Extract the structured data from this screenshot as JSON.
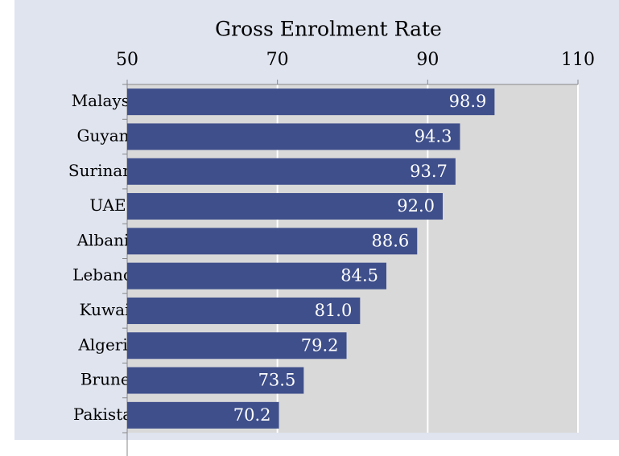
{
  "chart_data": {
    "type": "bar",
    "orientation": "horizontal",
    "title": "Gross Enrolment Rate",
    "categories": [
      "Malaysia",
      "Guyana",
      "Suriname",
      "UAE",
      "Albania",
      "Lebanon",
      "Kuwait",
      "Algeria",
      "Brunei",
      "Pakistan"
    ],
    "values": [
      98.9,
      94.3,
      93.7,
      92.0,
      88.6,
      84.5,
      81.0,
      79.2,
      73.5,
      70.2
    ],
    "value_labels": [
      "98.9",
      "94.3",
      "93.7",
      "92.0",
      "88.6",
      "84.5",
      "81.0",
      "79.2",
      "73.5",
      "70.2"
    ],
    "color": "#3f4f8b",
    "xlim": [
      50,
      110
    ],
    "xticks": [
      50,
      70,
      90,
      110
    ],
    "grid": true
  }
}
